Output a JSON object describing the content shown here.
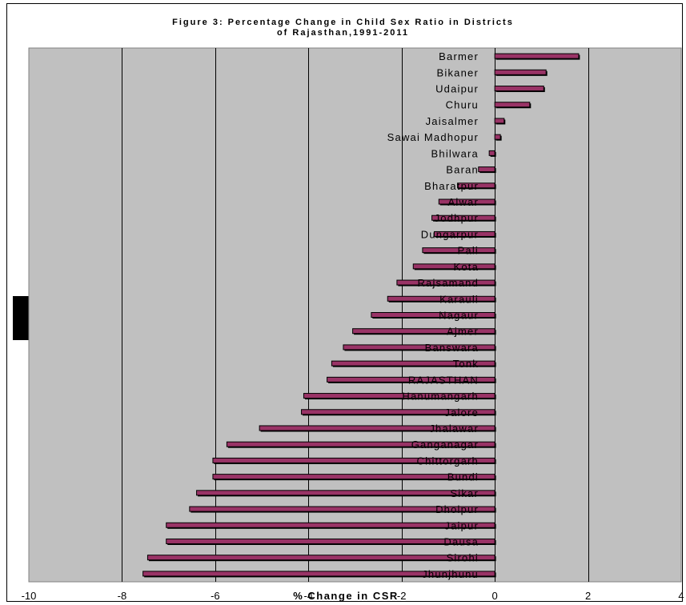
{
  "chart_data": {
    "type": "bar",
    "orientation": "horizontal",
    "title_lines": [
      "Figure 3: Percentage Change in Child Sex Ratio in Districts",
      "of Rajasthan,1991-2011"
    ],
    "xlabel": "% Change in CSR",
    "ylabel": "",
    "xlim": [
      -10,
      4
    ],
    "xticks": [
      -10,
      -8,
      -6,
      -4,
      -2,
      0,
      2,
      4
    ],
    "grid": true,
    "legend": "none",
    "bar_color": "#993366",
    "plot_bg": "#c0c0c0",
    "categories": [
      "Barmer",
      "Bikaner",
      "Udaipur",
      "Churu",
      "Jaisalmer",
      "Sawai Madhopur",
      "Bhilwara",
      "Baran",
      "Bharatpur",
      "Alwar",
      "Jodhpur",
      "Dungarpur",
      "Pali",
      "Kota",
      "Rajsamand",
      "Karauli",
      "Nagaur",
      "Ajmer",
      "Banswara",
      "Tonk",
      "RAJASTHAN",
      "Hanumangarh",
      "Jalore",
      "Jhalawar",
      "Ganganagar",
      "Chittorgarh",
      "Bundi",
      "Sikar",
      "Dholpur",
      "Jaipur",
      "Dausa",
      "Sirohi",
      "Jhunjhunu"
    ],
    "values": [
      1.8,
      1.1,
      1.05,
      0.75,
      0.2,
      0.12,
      -0.12,
      -0.35,
      -0.8,
      -1.2,
      -1.35,
      -1.3,
      -1.55,
      -1.75,
      -2.1,
      -2.3,
      -2.65,
      -3.05,
      -3.25,
      -3.5,
      -3.6,
      -4.1,
      -4.15,
      -5.05,
      -5.75,
      -6.05,
      -6.05,
      -6.4,
      -6.55,
      -7.05,
      -7.05,
      -7.45,
      -7.55
    ]
  }
}
